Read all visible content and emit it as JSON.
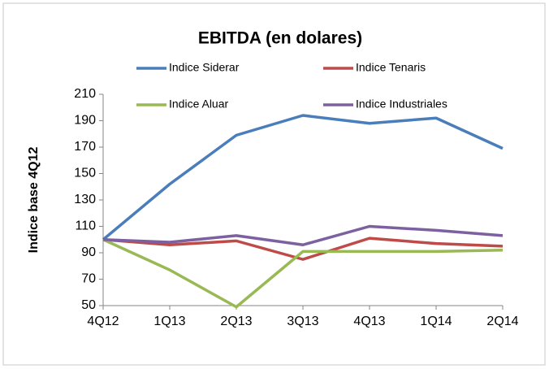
{
  "chart_data": {
    "type": "line",
    "title": "EBITDA (en dolares)",
    "y_label": "Indice base 4Q12",
    "categories": [
      "4Q12",
      "1Q13",
      "2Q13",
      "3Q13",
      "4Q13",
      "1Q14",
      "2Q14"
    ],
    "series": [
      {
        "name": "Indice Siderar",
        "color": "#4a7ebb",
        "values": [
          100,
          142,
          179,
          194,
          188,
          192,
          169
        ]
      },
      {
        "name": "Indice Tenaris",
        "color": "#be4b48",
        "values": [
          100,
          96,
          99,
          85,
          101,
          97,
          95
        ]
      },
      {
        "name": "Indice Aluar",
        "color": "#98b954",
        "values": [
          100,
          77,
          49,
          91,
          91,
          91,
          92
        ]
      },
      {
        "name": "Indice Industriales",
        "color": "#7d60a0",
        "values": [
          100,
          98,
          103,
          96,
          110,
          107,
          103
        ]
      }
    ],
    "ylim": [
      50,
      210
    ],
    "yticks": [
      50,
      70,
      90,
      110,
      130,
      150,
      170,
      190,
      210
    ],
    "grid": false
  }
}
